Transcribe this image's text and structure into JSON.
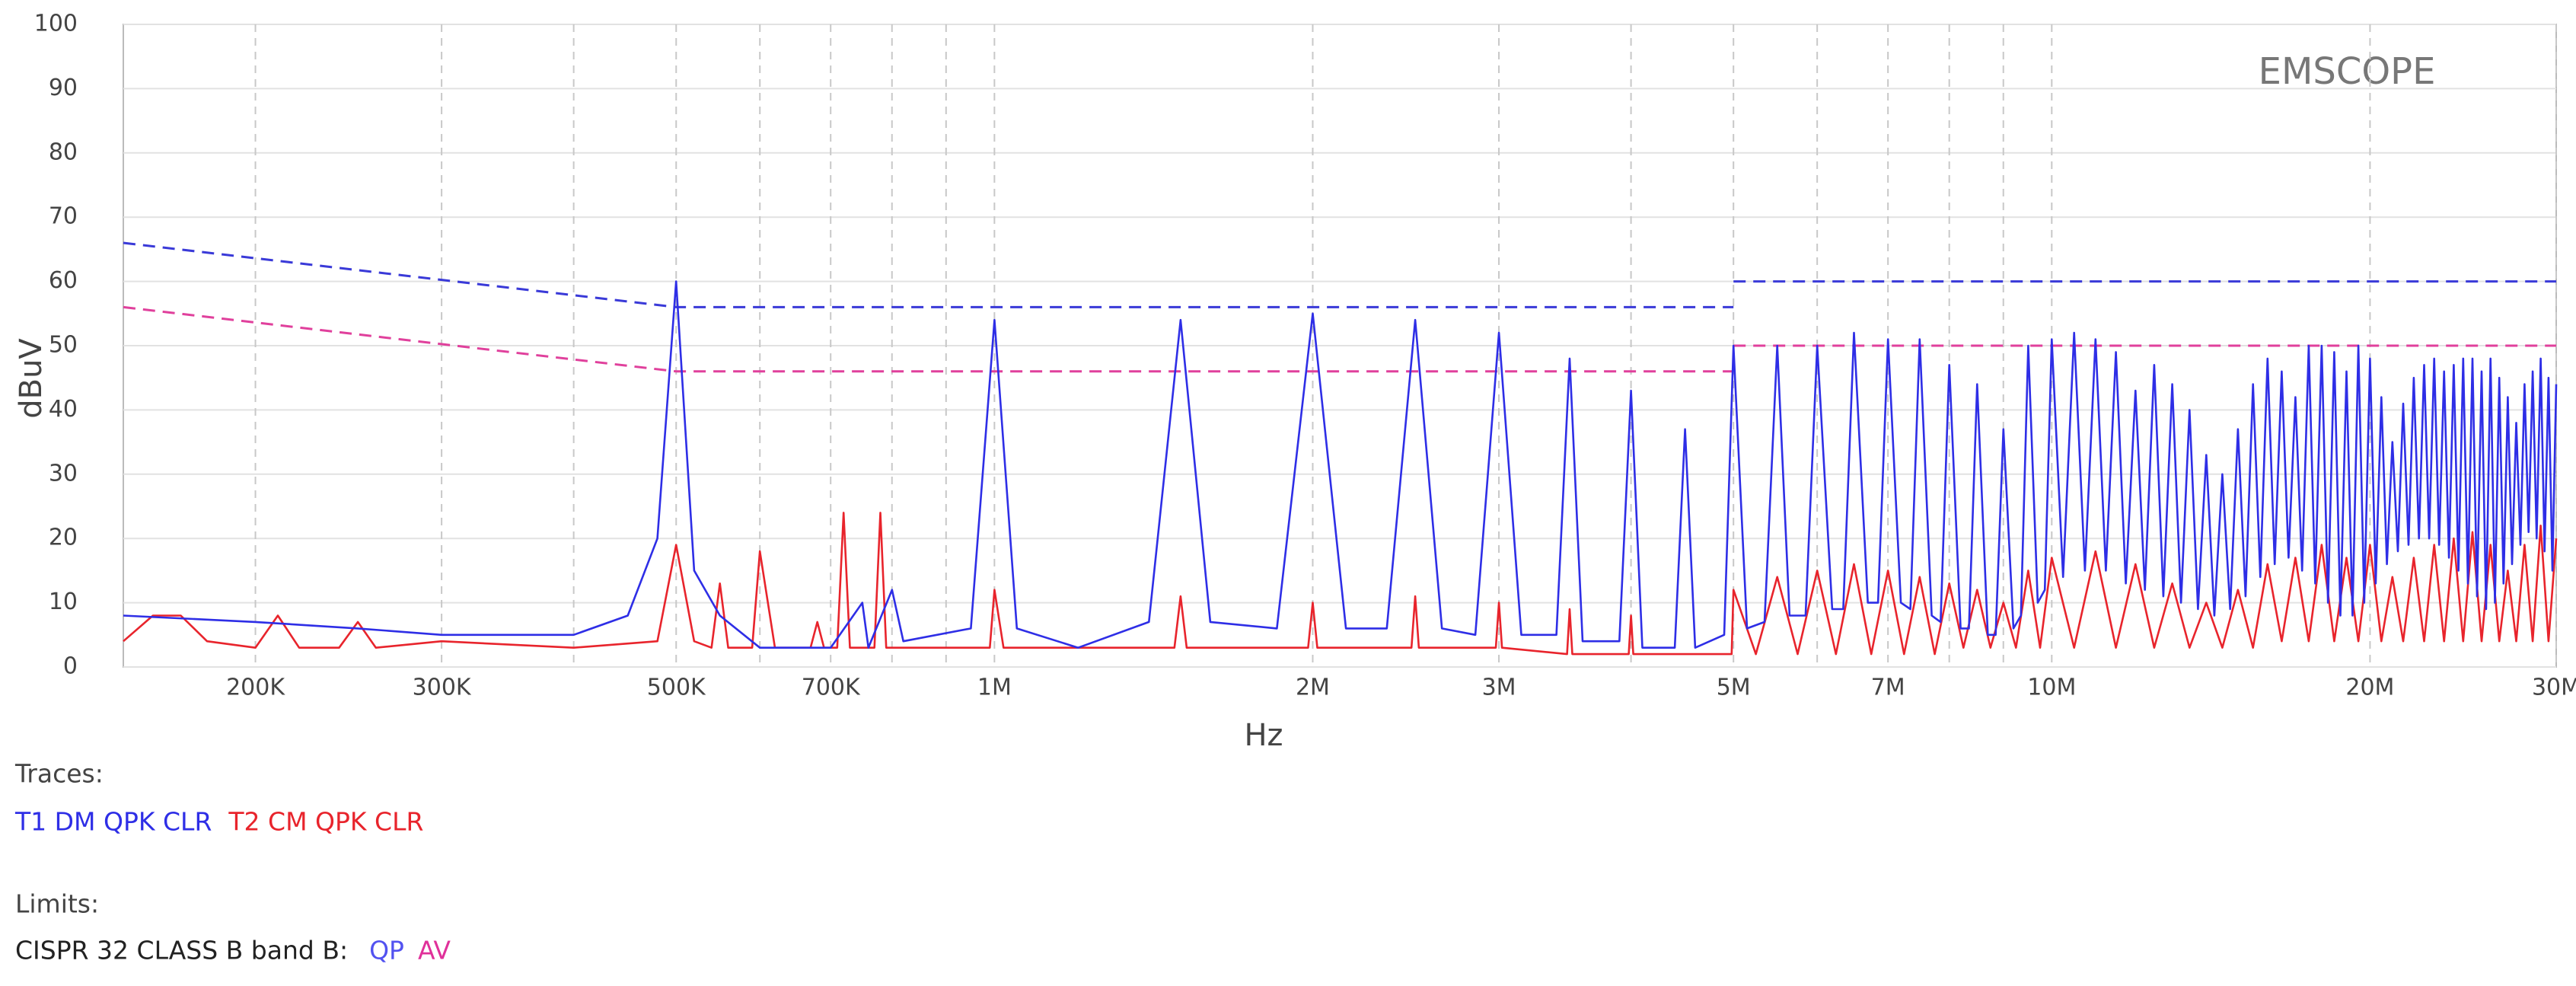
{
  "chart_data": {
    "type": "line",
    "watermark": "EMSCOPE",
    "x_label": "Hz",
    "y_label": "dBuV",
    "xscale": "log",
    "xlim": [
      150000,
      30000000
    ],
    "ylim": [
      0,
      100
    ],
    "yticks": [
      0,
      10,
      20,
      30,
      40,
      50,
      60,
      70,
      80,
      90,
      100
    ],
    "xticks": [
      {
        "value": 200000,
        "label": "200K"
      },
      {
        "value": 300000,
        "label": "300K"
      },
      {
        "value": 500000,
        "label": "500K"
      },
      {
        "value": 700000,
        "label": "700K"
      },
      {
        "value": 1000000,
        "label": "1M"
      },
      {
        "value": 2000000,
        "label": "2M"
      },
      {
        "value": 3000000,
        "label": "3M"
      },
      {
        "value": 5000000,
        "label": "5M"
      },
      {
        "value": 7000000,
        "label": "7M"
      },
      {
        "value": 10000000,
        "label": "10M"
      },
      {
        "value": 20000000,
        "label": "20M"
      },
      {
        "value": 30000000,
        "label": "30M"
      }
    ],
    "xminor": [
      400000,
      600000,
      800000,
      900000,
      4000000,
      6000000,
      8000000,
      9000000
    ],
    "grid": true,
    "traces_label": "Traces:",
    "series": [
      {
        "name": "T1 DM QPK CLR",
        "color": "#2e2ee6",
        "x": [
          150000,
          200000,
          250000,
          300000,
          400000,
          450000,
          480000,
          500000,
          520000,
          550000,
          600000,
          700000,
          750000,
          760000,
          800000,
          820000,
          950000,
          1000000,
          1050000,
          1200000,
          1400000,
          1500000,
          1600000,
          1850000,
          2000000,
          2150000,
          2350000,
          2500000,
          2650000,
          2850000,
          3000000,
          3150000,
          3400000,
          3500000,
          3600000,
          3900000,
          4000000,
          4100000,
          4400000,
          4500000,
          4600000,
          4900000,
          5000000,
          5150000,
          5350000,
          5500000,
          5650000,
          5850000,
          6000000,
          6200000,
          6350000,
          6500000,
          6700000,
          6850000,
          7000000,
          7200000,
          7350000,
          7500000,
          7700000,
          7850000,
          8000000,
          8200000,
          8350000,
          8500000,
          8700000,
          8850000,
          9000000,
          9200000,
          9350000,
          9500000,
          9700000,
          9850000,
          10000000,
          10250000,
          10500000,
          10750000,
          11000000,
          11250000,
          11500000,
          11750000,
          12000000,
          12250000,
          12500000,
          12750000,
          13000000,
          13250000,
          13500000,
          13750000,
          14000000,
          14250000,
          14500000,
          14750000,
          15000000,
          15250000,
          15500000,
          15750000,
          16000000,
          16250000,
          16500000,
          16750000,
          17000000,
          17250000,
          17500000,
          17750000,
          18000000,
          18250000,
          18500000,
          18750000,
          19000000,
          19250000,
          19500000,
          19750000,
          20000000,
          20250000,
          20500000,
          20750000,
          21000000,
          21250000,
          21500000,
          21750000,
          22000000,
          22250000,
          22500000,
          22750000,
          23000000,
          23250000,
          23500000,
          23750000,
          24000000,
          24250000,
          24500000,
          24750000,
          25000000,
          25250000,
          25500000,
          25750000,
          26000000,
          26250000,
          26500000,
          26750000,
          27000000,
          27250000,
          27500000,
          27750000,
          28000000,
          28250000,
          28500000,
          28750000,
          29000000,
          29250000,
          29500000,
          29750000,
          30000000
        ],
        "values": [
          8,
          7,
          6,
          5,
          5,
          8,
          20,
          60,
          15,
          8,
          3,
          3,
          10,
          3,
          12,
          4,
          6,
          54,
          6,
          3,
          7,
          54,
          7,
          6,
          55,
          6,
          6,
          54,
          6,
          5,
          52,
          5,
          5,
          48,
          4,
          4,
          43,
          3,
          3,
          37,
          3,
          5,
          50,
          6,
          7,
          50,
          8,
          8,
          50,
          9,
          9,
          52,
          10,
          10,
          51,
          10,
          9,
          51,
          8,
          7,
          47,
          6,
          6,
          44,
          5,
          5,
          37,
          6,
          8,
          50,
          10,
          12,
          51,
          14,
          52,
          15,
          51,
          15,
          49,
          13,
          43,
          12,
          47,
          11,
          44,
          10,
          40,
          9,
          33,
          8,
          30,
          9,
          37,
          11,
          44,
          14,
          48,
          16,
          46,
          17,
          42,
          15,
          50,
          13,
          50,
          10,
          49,
          8,
          46,
          8,
          50,
          10,
          48,
          13,
          42,
          16,
          35,
          18,
          41,
          19,
          45,
          20,
          47,
          20,
          48,
          19,
          46,
          17,
          47,
          15,
          48,
          13,
          48,
          11,
          46,
          9,
          48,
          10,
          45,
          13,
          42,
          16,
          38,
          19,
          44,
          21,
          46,
          20,
          48,
          18,
          45,
          15,
          44
        ]
      },
      {
        "name": "T2 CM QPK CLR",
        "color": "#e8242c",
        "x": [
          150000,
          160000,
          170000,
          180000,
          200000,
          210000,
          220000,
          240000,
          250000,
          260000,
          300000,
          400000,
          480000,
          500000,
          520000,
          540000,
          550000,
          560000,
          590000,
          600000,
          620000,
          670000,
          680000,
          690000,
          710000,
          720000,
          730000,
          770000,
          780000,
          790000,
          990000,
          1000000,
          1020000,
          1480000,
          1500000,
          1520000,
          1980000,
          2000000,
          2020000,
          2480000,
          2500000,
          2520000,
          2980000,
          3000000,
          3020000,
          3480000,
          3500000,
          3520000,
          3980000,
          4000000,
          4020000,
          4980000,
          5000000,
          5250000,
          5500000,
          5750000,
          6000000,
          6250000,
          6500000,
          6750000,
          7000000,
          7250000,
          7500000,
          7750000,
          8000000,
          8250000,
          8500000,
          8750000,
          9000000,
          9250000,
          9500000,
          9750000,
          10000000,
          10500000,
          11000000,
          11500000,
          12000000,
          12500000,
          13000000,
          13500000,
          14000000,
          14500000,
          15000000,
          15500000,
          16000000,
          16500000,
          17000000,
          17500000,
          18000000,
          18500000,
          19000000,
          19500000,
          20000000,
          20500000,
          21000000,
          21500000,
          22000000,
          22500000,
          23000000,
          23500000,
          24000000,
          24500000,
          25000000,
          25500000,
          26000000,
          26500000,
          27000000,
          27500000,
          28000000,
          28500000,
          29000000,
          29500000,
          30000000
        ],
        "values": [
          4,
          8,
          8,
          4,
          3,
          8,
          3,
          3,
          7,
          3,
          4,
          3,
          4,
          19,
          4,
          3,
          13,
          3,
          3,
          18,
          3,
          3,
          7,
          3,
          3,
          24,
          3,
          3,
          24,
          3,
          3,
          12,
          3,
          3,
          11,
          3,
          3,
          10,
          3,
          3,
          11,
          3,
          3,
          10,
          3,
          2,
          9,
          2,
          2,
          8,
          2,
          2,
          12,
          2,
          14,
          2,
          15,
          2,
          16,
          2,
          15,
          2,
          14,
          2,
          13,
          3,
          12,
          3,
          10,
          3,
          15,
          3,
          17,
          3,
          18,
          3,
          16,
          3,
          13,
          3,
          10,
          3,
          12,
          3,
          16,
          4,
          17,
          4,
          19,
          4,
          17,
          4,
          19,
          4,
          14,
          4,
          17,
          4,
          19,
          4,
          20,
          4,
          21,
          4,
          19,
          4,
          15,
          4,
          19,
          4,
          22,
          4,
          20
        ]
      }
    ],
    "limits_label": "Limits:",
    "limits": {
      "title": "CISPR 32 CLASS B band B:",
      "series": [
        {
          "name": "QP",
          "color": "#3a3ad8",
          "legend_color": "#5252f0",
          "x": [
            150000,
            500000,
            5000000,
            5000000,
            5000000,
            30000000
          ],
          "values": [
            66,
            56,
            56,
            null,
            60,
            60
          ]
        },
        {
          "name": "AV",
          "color": "#e0409c",
          "legend_color": "#e0309a",
          "x": [
            150000,
            500000,
            5000000,
            5000000,
            5000000,
            30000000
          ],
          "values": [
            56,
            46,
            46,
            null,
            50,
            50
          ]
        }
      ]
    }
  }
}
